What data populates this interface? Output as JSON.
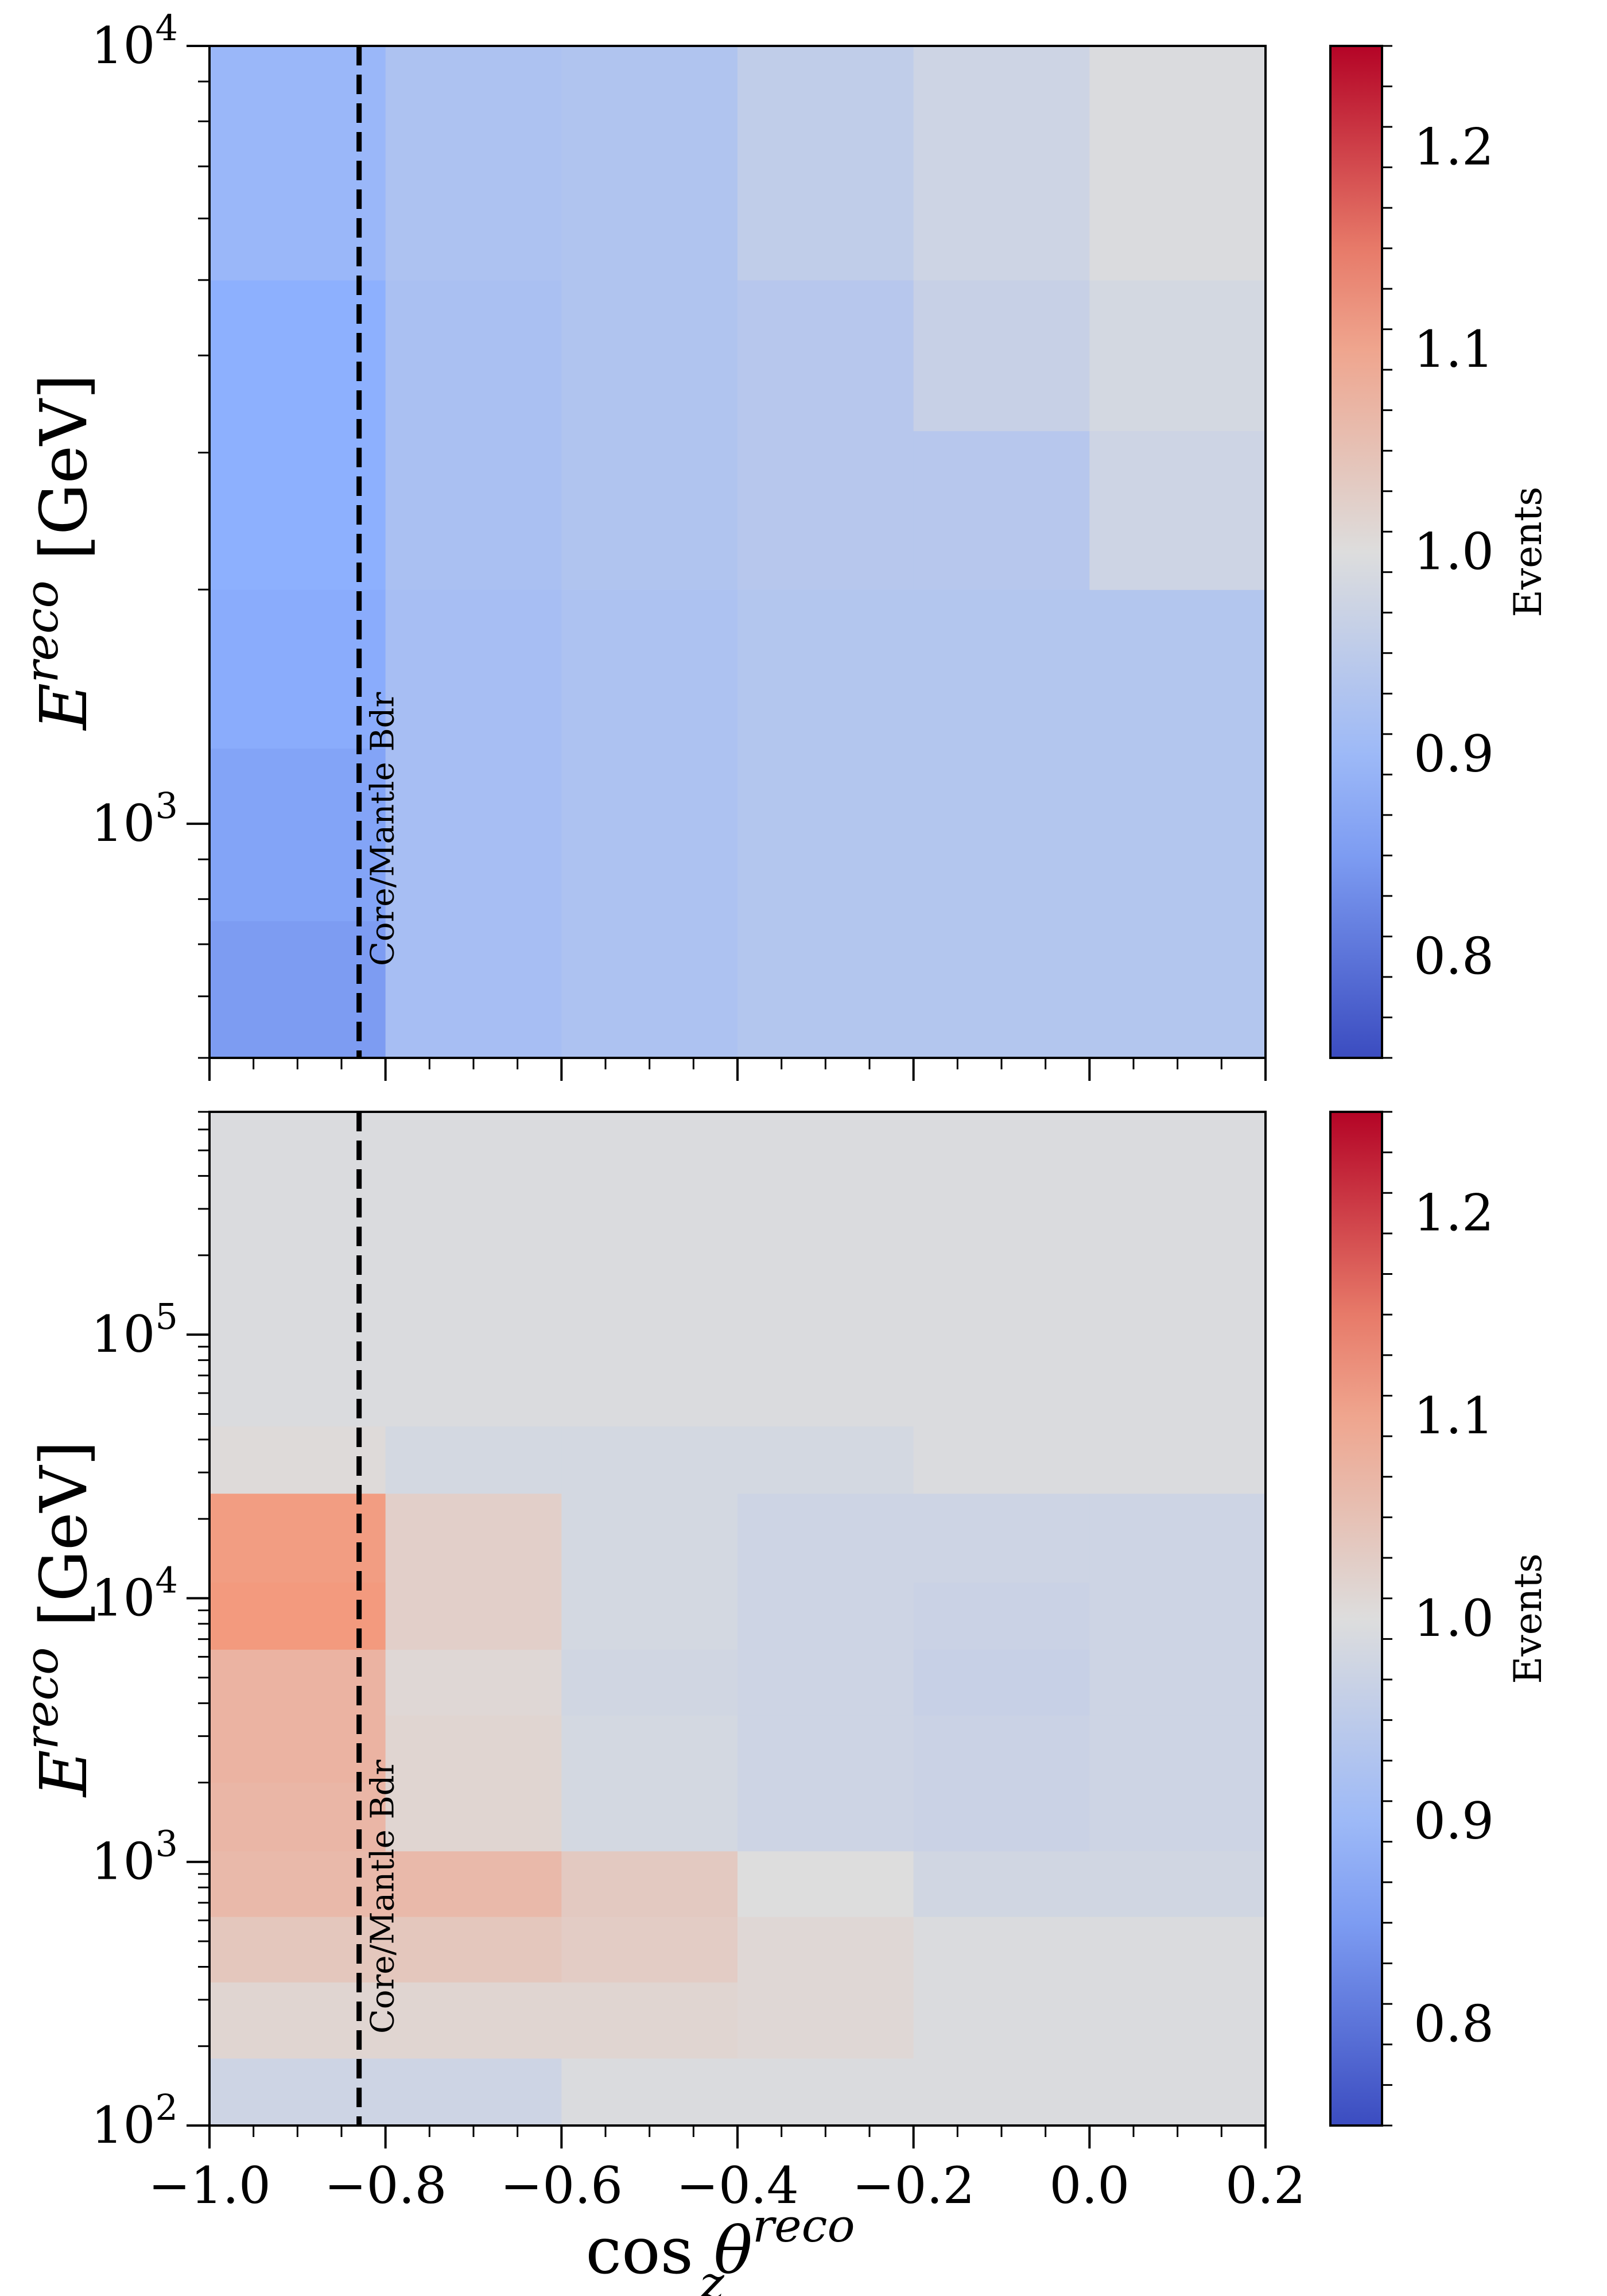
{
  "chart_data": [
    {
      "type": "heatmap",
      "panel": "top",
      "x_edges": [
        -1.0,
        -0.8,
        -0.6,
        -0.4,
        -0.2,
        0.0,
        0.2
      ],
      "y_edges": [
        500,
        750,
        1250,
        2000,
        3200,
        5000,
        10000
      ],
      "xlim": [
        -1.0,
        0.2
      ],
      "ylim": [
        500,
        10000
      ],
      "yscale": "log",
      "values": [
        [
          0.85,
          0.915,
          0.925,
          0.935,
          0.935,
          0.935
        ],
        [
          0.86,
          0.915,
          0.925,
          0.935,
          0.935,
          0.935
        ],
        [
          0.87,
          0.915,
          0.925,
          0.935,
          0.935,
          0.935
        ],
        [
          0.875,
          0.92,
          0.93,
          0.94,
          0.94,
          0.975
        ],
        [
          0.875,
          0.92,
          0.93,
          0.94,
          0.965,
          0.985
        ],
        [
          0.895,
          0.925,
          0.93,
          0.955,
          0.975,
          0.995
        ]
      ],
      "yticks": [
        {
          "base": "10",
          "exp": "3",
          "value": 1000
        },
        {
          "base": "10",
          "exp": "4",
          "value": 10000
        }
      ],
      "ylabel": {
        "main": "E",
        "sup": "reco",
        "unit": " [GeV]"
      },
      "vline": {
        "x": -0.83,
        "style": "dashed",
        "label": "Core/Mantle Bdr"
      },
      "colorbar": {
        "label": "Events",
        "vmin": 0.75,
        "vmax": 1.25,
        "ticks": [
          "0.8",
          "0.9",
          "1.0",
          "1.1",
          "1.2"
        ]
      }
    },
    {
      "type": "heatmap",
      "panel": "bottom",
      "x_edges": [
        -1.0,
        -0.8,
        -0.6,
        -0.4,
        -0.2,
        0.0,
        0.2
      ],
      "y_edges": [
        100,
        180,
        350,
        620,
        1100,
        2000,
        3600,
        6400,
        11500,
        25000,
        45000,
        80000,
        700000
      ],
      "xlim": [
        -1.0,
        0.2
      ],
      "ylim": [
        100,
        700000
      ],
      "yscale": "log",
      "values": [
        [
          0.975,
          0.975,
          0.995,
          0.995,
          0.995,
          0.995
        ],
        [
          1.015,
          1.015,
          1.015,
          1.01,
          0.995,
          0.995
        ],
        [
          1.04,
          1.04,
          1.03,
          1.01,
          0.995,
          0.995
        ],
        [
          1.065,
          1.065,
          1.035,
          1.0,
          0.98,
          0.98
        ],
        [
          1.07,
          1.015,
          0.985,
          0.975,
          0.97,
          0.975
        ],
        [
          1.075,
          1.015,
          0.985,
          0.975,
          0.97,
          0.975
        ],
        [
          1.075,
          1.01,
          0.98,
          0.975,
          0.965,
          0.975
        ],
        [
          1.12,
          1.025,
          0.985,
          0.975,
          0.97,
          0.975
        ],
        [
          1.115,
          1.025,
          0.985,
          0.975,
          0.975,
          0.975
        ],
        [
          1.005,
          0.985,
          0.985,
          0.985,
          0.995,
          0.995
        ],
        [
          0.995,
          0.995,
          0.995,
          0.995,
          0.995,
          0.995
        ],
        [
          0.995,
          0.995,
          0.995,
          0.995,
          0.995,
          0.995
        ]
      ],
      "yticks": [
        {
          "base": "10",
          "exp": "2",
          "value": 100
        },
        {
          "base": "10",
          "exp": "3",
          "value": 1000
        },
        {
          "base": "10",
          "exp": "4",
          "value": 10000
        },
        {
          "base": "10",
          "exp": "5",
          "value": 100000
        }
      ],
      "xticks": [
        "−1.0",
        "−0.8",
        "−0.6",
        "−0.4",
        "−0.2",
        "0.0",
        "0.2"
      ],
      "xlabel": {
        "prefix": "cos ",
        "main": "θ",
        "sup": "reco",
        "sub": "z"
      },
      "ylabel": {
        "main": "E",
        "sup": "reco",
        "unit": " [GeV]"
      },
      "vline": {
        "x": -0.83,
        "style": "dashed",
        "label": "Core/Mantle Bdr"
      },
      "colorbar": {
        "label": "Events",
        "vmin": 0.75,
        "vmax": 1.25,
        "ticks": [
          "0.8",
          "0.9",
          "1.0",
          "1.1",
          "1.2"
        ]
      }
    }
  ]
}
